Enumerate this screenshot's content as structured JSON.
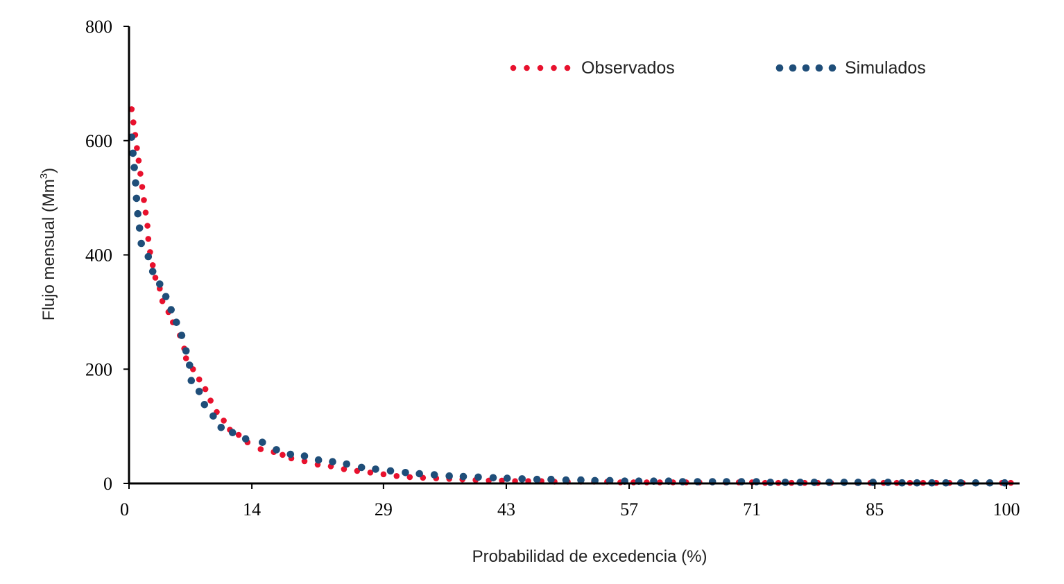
{
  "chart_data": {
    "type": "scatter",
    "xlabel": "Probabilidad de excedencia (%)",
    "ylabel": "Flujo mensual (Mm",
    "ylabel_sup": "3",
    "ylabel_end": ")",
    "xlim": [
      0,
      101.5
    ],
    "ylim": [
      0,
      800
    ],
    "x_ticks": [
      0,
      14,
      29,
      43,
      57,
      71,
      85,
      100
    ],
    "y_ticks": [
      0,
      200,
      400,
      600,
      800
    ],
    "grid": false,
    "legend": "top-center",
    "series": [
      {
        "name": "Observados",
        "color": "#e8112d",
        "points": [
          [
            0.3,
            655
          ],
          [
            0.5,
            632
          ],
          [
            0.7,
            610
          ],
          [
            0.9,
            587
          ],
          [
            1.1,
            565
          ],
          [
            1.3,
            542
          ],
          [
            1.5,
            519
          ],
          [
            1.7,
            496
          ],
          [
            1.9,
            474
          ],
          [
            2.1,
            451
          ],
          [
            2.2,
            428
          ],
          [
            2.4,
            405
          ],
          [
            2.7,
            382
          ],
          [
            3.0,
            360
          ],
          [
            3.5,
            341
          ],
          [
            3.8,
            319
          ],
          [
            4.5,
            300
          ],
          [
            5.0,
            282
          ],
          [
            5.8,
            259
          ],
          [
            6.3,
            236
          ],
          [
            6.5,
            219
          ],
          [
            7.3,
            200
          ],
          [
            8.0,
            182
          ],
          [
            8.7,
            165
          ],
          [
            9.3,
            145
          ],
          [
            10.0,
            125
          ],
          [
            10.8,
            110
          ],
          [
            11.5,
            94
          ],
          [
            12.5,
            85
          ],
          [
            13.5,
            72
          ],
          [
            15.0,
            60
          ],
          [
            16.5,
            55
          ],
          [
            17.5,
            50
          ],
          [
            18.5,
            44
          ],
          [
            20.0,
            39
          ],
          [
            21.5,
            33
          ],
          [
            23.0,
            30
          ],
          [
            24.5,
            25
          ],
          [
            26.0,
            22
          ],
          [
            27.5,
            19
          ],
          [
            29.0,
            16
          ],
          [
            30.5,
            13
          ],
          [
            32.0,
            11
          ],
          [
            33.5,
            10
          ],
          [
            35.0,
            9
          ],
          [
            36.5,
            8
          ],
          [
            38.0,
            7
          ],
          [
            39.5,
            6
          ],
          [
            41.0,
            5
          ],
          [
            42.5,
            5
          ],
          [
            44.0,
            4
          ],
          [
            45.5,
            4
          ],
          [
            47.0,
            4
          ],
          [
            48.5,
            3
          ],
          [
            50.0,
            3
          ],
          [
            51.5,
            3
          ],
          [
            53.0,
            3
          ],
          [
            54.5,
            3
          ],
          [
            56.0,
            2
          ],
          [
            57.5,
            2
          ],
          [
            59.0,
            2
          ],
          [
            60.5,
            2
          ],
          [
            62.0,
            2
          ],
          [
            63.5,
            2
          ],
          [
            65.0,
            2
          ],
          [
            66.5,
            2
          ],
          [
            68.0,
            2
          ],
          [
            69.5,
            2
          ],
          [
            71.0,
            2
          ],
          [
            72.5,
            1
          ],
          [
            74.0,
            1
          ],
          [
            75.5,
            1
          ],
          [
            77.0,
            1
          ],
          [
            78.5,
            1
          ],
          [
            80.0,
            1
          ],
          [
            81.5,
            1
          ],
          [
            83.0,
            1
          ],
          [
            84.5,
            1
          ],
          [
            86.0,
            1
          ],
          [
            87.5,
            1
          ],
          [
            89.0,
            1
          ],
          [
            90.5,
            1
          ],
          [
            92.0,
            1
          ],
          [
            93.5,
            1
          ],
          [
            95.0,
            1
          ],
          [
            96.5,
            1
          ],
          [
            98.0,
            1
          ],
          [
            99.5,
            1
          ],
          [
            100.5,
            1
          ]
        ]
      },
      {
        "name": "Simulados",
        "color": "#1f4e79",
        "points": [
          [
            0.3,
            606
          ],
          [
            0.45,
            578
          ],
          [
            0.6,
            553
          ],
          [
            0.75,
            526
          ],
          [
            0.85,
            499
          ],
          [
            1.0,
            472
          ],
          [
            1.2,
            447
          ],
          [
            1.4,
            420
          ],
          [
            2.2,
            397
          ],
          [
            2.7,
            371
          ],
          [
            3.5,
            349
          ],
          [
            4.2,
            327
          ],
          [
            4.8,
            304
          ],
          [
            5.4,
            282
          ],
          [
            6.0,
            259
          ],
          [
            6.5,
            232
          ],
          [
            6.9,
            207
          ],
          [
            7.1,
            180
          ],
          [
            8.0,
            161
          ],
          [
            8.6,
            138
          ],
          [
            9.6,
            118
          ],
          [
            10.5,
            98
          ],
          [
            11.8,
            89
          ],
          [
            13.3,
            78
          ],
          [
            15.2,
            72
          ],
          [
            16.8,
            59
          ],
          [
            18.4,
            51
          ],
          [
            20.0,
            48
          ],
          [
            21.6,
            41
          ],
          [
            23.2,
            38
          ],
          [
            24.8,
            34
          ],
          [
            26.5,
            28
          ],
          [
            28.1,
            25
          ],
          [
            29.8,
            22
          ],
          [
            31.5,
            19
          ],
          [
            33.1,
            17
          ],
          [
            34.8,
            15
          ],
          [
            36.5,
            13
          ],
          [
            38.1,
            12
          ],
          [
            39.8,
            11
          ],
          [
            41.5,
            10
          ],
          [
            43.1,
            9
          ],
          [
            44.8,
            8
          ],
          [
            46.5,
            7
          ],
          [
            48.1,
            7
          ],
          [
            49.8,
            6
          ],
          [
            51.5,
            6
          ],
          [
            53.1,
            5
          ],
          [
            54.8,
            5
          ],
          [
            56.5,
            4
          ],
          [
            58.1,
            4
          ],
          [
            59.8,
            4
          ],
          [
            61.5,
            4
          ],
          [
            63.1,
            3
          ],
          [
            64.8,
            3
          ],
          [
            66.5,
            3
          ],
          [
            68.1,
            3
          ],
          [
            69.8,
            3
          ],
          [
            71.5,
            3
          ],
          [
            73.1,
            2
          ],
          [
            74.8,
            2
          ],
          [
            76.5,
            2
          ],
          [
            78.1,
            2
          ],
          [
            79.8,
            2
          ],
          [
            81.5,
            2
          ],
          [
            83.1,
            2
          ],
          [
            84.8,
            2
          ],
          [
            86.5,
            2
          ],
          [
            88.1,
            1
          ],
          [
            89.8,
            1
          ],
          [
            91.5,
            1
          ],
          [
            93.1,
            1
          ],
          [
            94.8,
            1
          ],
          [
            96.5,
            1
          ],
          [
            98.1,
            1
          ],
          [
            99.8,
            1
          ]
        ]
      }
    ]
  }
}
